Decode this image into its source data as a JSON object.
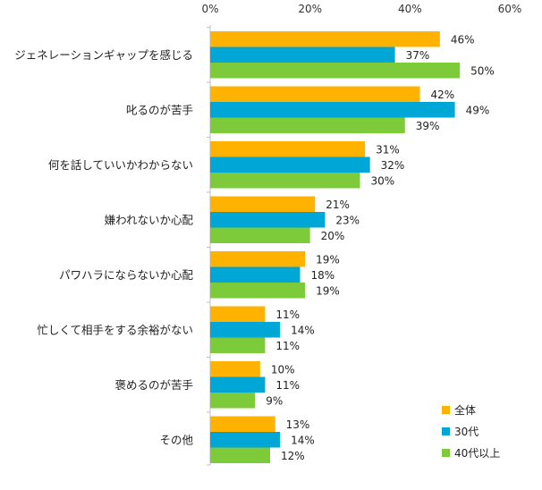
{
  "chart_data": {
    "type": "bar",
    "orientation": "horizontal",
    "title": "",
    "xlabel": "",
    "ylabel": "",
    "xlim": [
      0,
      60
    ],
    "x_ticks": [
      "0%",
      "20%",
      "40%",
      "60%"
    ],
    "x_tick_values": [
      0,
      20,
      40,
      60
    ],
    "grid": false,
    "legend_position": "bottom-right",
    "categories": [
      "ジェネレーションギャップを感じる",
      "叱るのが苦手",
      "何を話していいかわからない",
      "嫌われないか心配",
      "パワハラにならないか心配",
      "忙しくて相手をする余裕がない",
      "褒めるのが苦手",
      "その他"
    ],
    "series": [
      {
        "name": "全体",
        "color": "#FFB300",
        "values": [
          46,
          42,
          31,
          21,
          19,
          11,
          10,
          13
        ],
        "labels": [
          "46%",
          "42%",
          "31%",
          "21%",
          "19%",
          "11%",
          "10%",
          "13%"
        ]
      },
      {
        "name": "30代",
        "color": "#00A6D6",
        "values": [
          37,
          49,
          32,
          23,
          18,
          14,
          11,
          14
        ],
        "labels": [
          "37%",
          "49%",
          "32%",
          "23%",
          "18%",
          "14%",
          "11%",
          "14%"
        ]
      },
      {
        "name": "40代以上",
        "color": "#7DCB3B",
        "values": [
          50,
          39,
          30,
          20,
          19,
          11,
          9,
          12
        ],
        "labels": [
          "50%",
          "39%",
          "30%",
          "20%",
          "19%",
          "11%",
          "9%",
          "12%"
        ]
      }
    ]
  }
}
